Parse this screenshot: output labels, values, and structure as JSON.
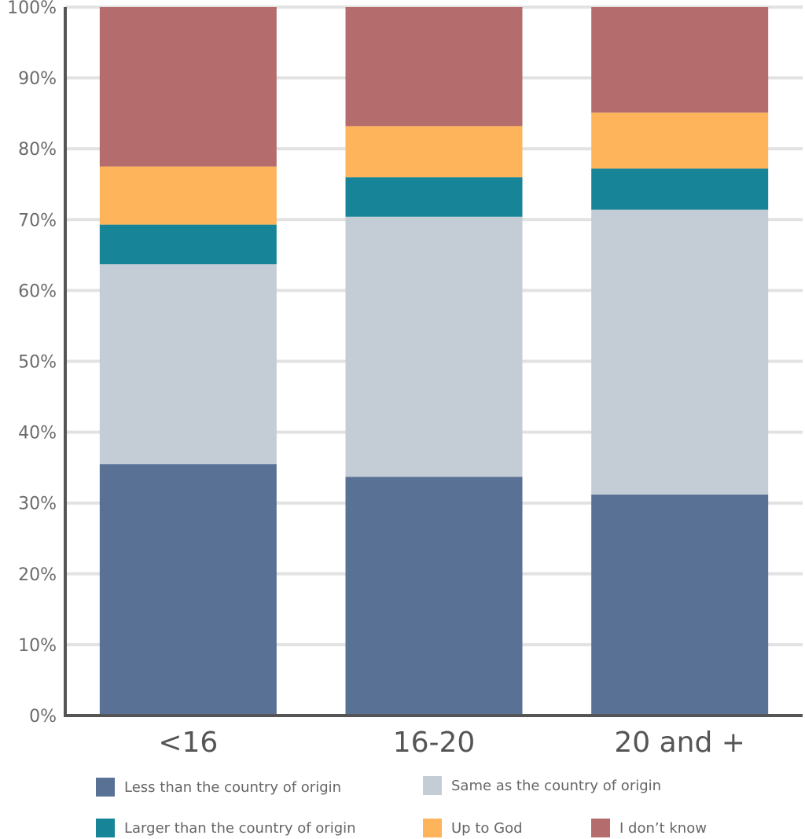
{
  "chart_data": {
    "type": "bar",
    "stacked": true,
    "categories": [
      "<16",
      "16-20",
      "20 and +"
    ],
    "series": [
      {
        "name": "Less than the country of origin",
        "color": "#5a7196",
        "values": [
          35.5,
          33.7,
          31.2
        ]
      },
      {
        "name": "Same as the country of origin",
        "color": "#c4cdd6",
        "values": [
          28.2,
          36.7,
          40.2
        ]
      },
      {
        "name": "Larger than the country of origin",
        "color": "#188498",
        "values": [
          5.6,
          5.6,
          5.8
        ]
      },
      {
        "name": "Up to God",
        "color": "#fdb45b",
        "values": [
          8.2,
          7.2,
          7.9
        ]
      },
      {
        "name": "I don’t know",
        "color": "#b46c6d",
        "values": [
          22.5,
          16.8,
          14.9
        ]
      }
    ],
    "ylim": [
      0,
      100
    ],
    "yticks": [
      "0%",
      "10%",
      "20%",
      "30%",
      "40%",
      "50%",
      "60%",
      "70%",
      "80%",
      "90%",
      "100%"
    ],
    "grid": true,
    "legend": "bottom"
  }
}
